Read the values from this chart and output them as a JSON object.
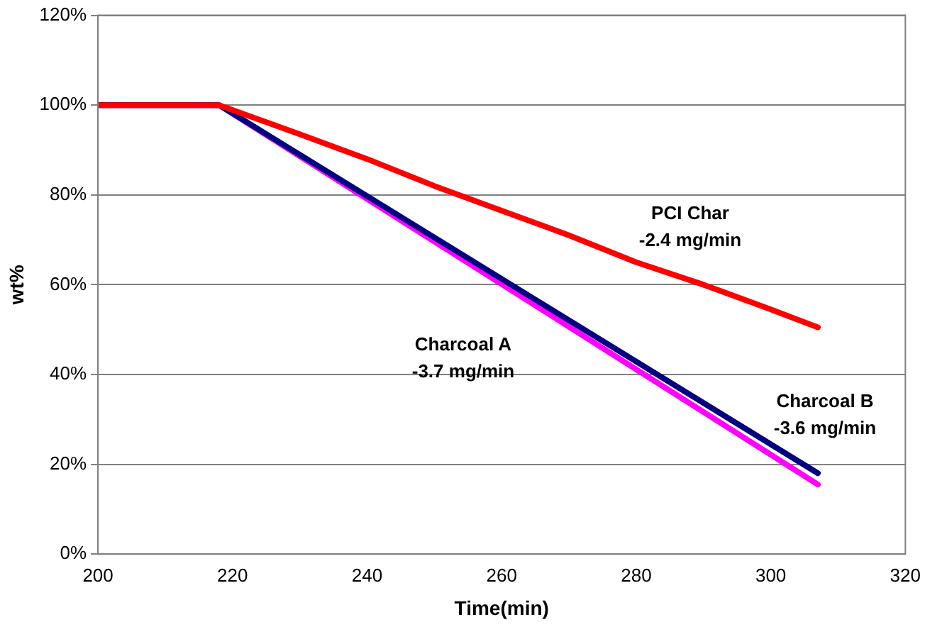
{
  "chart_data": {
    "type": "line",
    "xlabel": "Time(min)",
    "ylabel": "wt%",
    "xlim": [
      200,
      320
    ],
    "xticks": [
      200,
      220,
      240,
      260,
      280,
      300,
      320
    ],
    "ylim": [
      0,
      120
    ],
    "yticks": [
      {
        "value": 0,
        "label": "0%"
      },
      {
        "value": 20,
        "label": "20%"
      },
      {
        "value": 40,
        "label": "40%"
      },
      {
        "value": 60,
        "label": "60%"
      },
      {
        "value": 80,
        "label": "80%"
      },
      {
        "value": 100,
        "label": "100%"
      },
      {
        "value": 120,
        "label": "120%"
      }
    ],
    "grid": "y",
    "legend": false,
    "marker": "none",
    "line_style": "solid",
    "series": [
      {
        "name": "PCI Char",
        "color": "#ff0000",
        "x": [
          200,
          218,
          230,
          240,
          250,
          260,
          270,
          280,
          290,
          300,
          307
        ],
        "values": [
          100,
          100,
          93.5,
          88,
          82,
          76.5,
          71,
          65,
          60,
          54.5,
          50.5
        ]
      },
      {
        "name": "Charcoal B",
        "color": "#000080",
        "x": [
          200,
          218,
          307
        ],
        "values": [
          100,
          100,
          18
        ]
      },
      {
        "name": "Charcoal A",
        "color": "#ff00ff",
        "x": [
          200,
          218,
          307
        ],
        "values": [
          100,
          100,
          15.5
        ]
      }
    ],
    "annotations": [
      "-2.4 mg/min",
      "-3.6 mg/min",
      "-3.7 mg/min"
    ]
  }
}
